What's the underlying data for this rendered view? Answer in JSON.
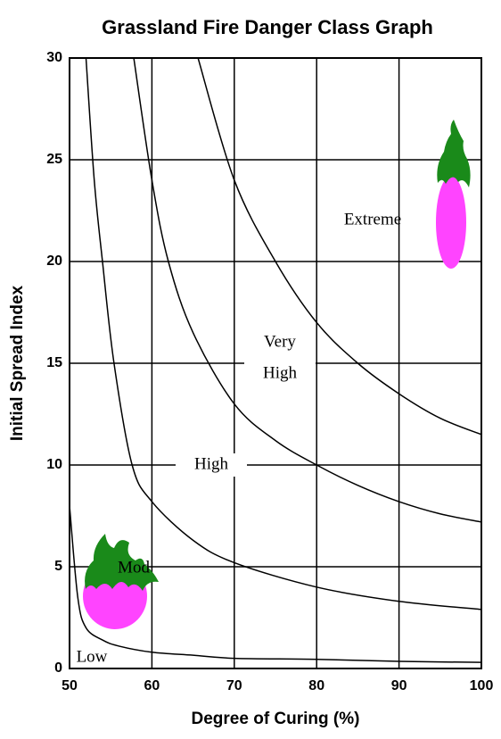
{
  "chart_data": {
    "type": "line",
    "title": "Grassland Fire Danger Class Graph",
    "x_label": "Degree of Curing (%)",
    "y_label": "Initial Spread Index",
    "xlim": [
      50,
      100
    ],
    "xticks": [
      50,
      60,
      70,
      80,
      90,
      100
    ],
    "ylim": [
      0,
      30
    ],
    "yticks": [
      0,
      5,
      10,
      15,
      20,
      25,
      30
    ],
    "grid": true,
    "series": [
      {
        "color": "#000000",
        "x": [
          50,
          51,
          52,
          54,
          56,
          60,
          65,
          70,
          80,
          90,
          100
        ],
        "values": [
          8,
          3.5,
          2,
          1.4,
          1.1,
          0.8,
          0.65,
          0.5,
          0.45,
          0.35,
          0.3
        ]
      },
      {
        "color": "#000000",
        "x": [
          52,
          53,
          54,
          55.4,
          57.6,
          60,
          65,
          70,
          80,
          90,
          100
        ],
        "values": [
          30,
          24,
          20,
          15,
          10,
          8.2,
          6.3,
          5.2,
          4,
          3.3,
          2.9
        ]
      },
      {
        "color": "#000000",
        "x": [
          57.8,
          60,
          62,
          65,
          70,
          75,
          80,
          85,
          90,
          95,
          100
        ],
        "values": [
          30,
          24,
          20,
          16.5,
          13,
          11.2,
          10,
          9,
          8.2,
          7.6,
          7.2
        ]
      },
      {
        "color": "#000000",
        "x": [
          65.6,
          70,
          75,
          80,
          85,
          90,
          95,
          100
        ],
        "values": [
          30,
          24,
          20,
          17,
          15,
          13.5,
          12.3,
          11.5
        ]
      }
    ],
    "annotations": [
      "Low",
      "Mod",
      "High",
      "Very",
      "High",
      "Extreme"
    ]
  }
}
